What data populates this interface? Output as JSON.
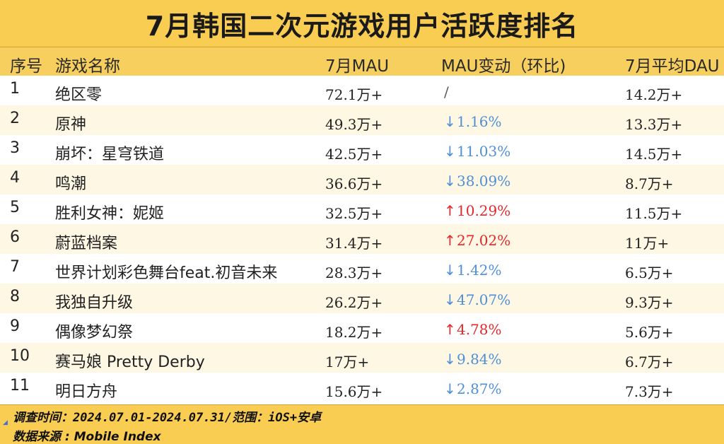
{
  "title": "7月韩国二次元游戏用户活跃度排名",
  "headers": {
    "rank": "序号",
    "name": "游戏名称",
    "mau": "7月MAU",
    "change": "MAU变动（环比)",
    "dau": "7月平均DAU"
  },
  "rows": [
    {
      "rank": "1",
      "name": "绝区零",
      "mau": "72.1万+",
      "change": "/",
      "dir": "none",
      "dau": "14.2万+"
    },
    {
      "rank": "2",
      "name": "原神",
      "mau": "49.3万+",
      "change": "1.16%",
      "dir": "down",
      "dau": "13.3万+"
    },
    {
      "rank": "3",
      "name": "崩坏：星穹铁道",
      "mau": "42.5万+",
      "change": "11.03%",
      "dir": "down",
      "dau": "14.5万+"
    },
    {
      "rank": "4",
      "name": "鸣潮",
      "mau": "36.6万+",
      "change": "38.09%",
      "dir": "down",
      "dau": "8.7万+"
    },
    {
      "rank": "5",
      "name": "胜利女神：妮姬",
      "mau": "32.5万+",
      "change": "10.29%",
      "dir": "up",
      "dau": "11.5万+"
    },
    {
      "rank": "6",
      "name": "蔚蓝档案",
      "mau": "31.4万+",
      "change": "27.02%",
      "dir": "up",
      "dau": "11万+"
    },
    {
      "rank": "7",
      "name": "世界计划彩色舞台feat.初音未来",
      "mau": "28.3万+",
      "change": "1.42%",
      "dir": "down",
      "dau": "6.5万+"
    },
    {
      "rank": "8",
      "name": "我独自升级",
      "mau": "26.2万+",
      "change": "47.07%",
      "dir": "down",
      "dau": "9.3万+"
    },
    {
      "rank": "9",
      "name": "偶像梦幻祭",
      "mau": "18.2万+",
      "change": "4.78%",
      "dir": "up",
      "dau": "5.6万+"
    },
    {
      "rank": "10",
      "name": "赛马娘 Pretty Derby",
      "mau": "17万+",
      "change": "9.84%",
      "dir": "down",
      "dau": "6.7万+"
    },
    {
      "rank": "11",
      "name": "明日方舟",
      "mau": "15.6万+",
      "change": "2.87%",
      "dir": "down",
      "dau": "7.3万+"
    }
  ],
  "footer": {
    "survey": "调查时间：2024.07.01-2024.07.31/范围：iOS+安卓",
    "source": "数据来源 : Mobile Index"
  },
  "colors": {
    "header_bg": "#f9cc52",
    "down": "#4f8fd8",
    "up": "#e8262a"
  }
}
